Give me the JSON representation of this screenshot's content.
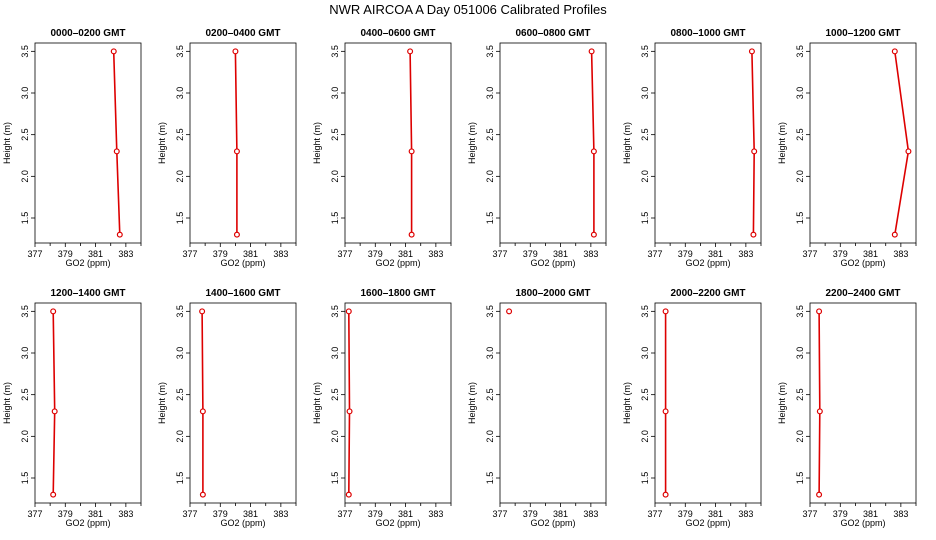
{
  "figure": {
    "title": "NWR AIRCOA A  Day 051006  Calibrated Profiles",
    "colors": {
      "series": "#dd0000",
      "axes": "#000000"
    }
  },
  "chart_data": [
    {
      "type": "line",
      "title": "0000–0200 GMT",
      "xlabel": "GO2 (ppm)",
      "ylabel": "Height (m)",
      "xlim": [
        377,
        384
      ],
      "ylim": [
        1.2,
        3.6
      ],
      "xticks": [
        377,
        379,
        381,
        383
      ],
      "yticks": [
        1.5,
        2.0,
        2.5,
        3.0,
        3.5
      ],
      "series": [
        {
          "points": [
            {
              "x": 382.6,
              "y": 1.3
            },
            {
              "x": 382.4,
              "y": 2.3
            },
            {
              "x": 382.2,
              "y": 3.5
            }
          ]
        }
      ]
    },
    {
      "type": "line",
      "title": "0200–0400 GMT",
      "xlabel": "GO2 (ppm)",
      "ylabel": "Height (m)",
      "xlim": [
        377,
        384
      ],
      "ylim": [
        1.2,
        3.6
      ],
      "xticks": [
        377,
        379,
        381,
        383
      ],
      "yticks": [
        1.5,
        2.0,
        2.5,
        3.0,
        3.5
      ],
      "series": [
        {
          "points": [
            {
              "x": 380.1,
              "y": 1.3
            },
            {
              "x": 380.1,
              "y": 2.3
            },
            {
              "x": 380.0,
              "y": 3.5
            }
          ]
        }
      ]
    },
    {
      "type": "line",
      "title": "0400–0600 GMT",
      "xlabel": "GO2 (ppm)",
      "ylabel": "Height (m)",
      "xlim": [
        377,
        384
      ],
      "ylim": [
        1.2,
        3.6
      ],
      "xticks": [
        377,
        379,
        381,
        383
      ],
      "yticks": [
        1.5,
        2.0,
        2.5,
        3.0,
        3.5
      ],
      "series": [
        {
          "points": [
            {
              "x": 381.4,
              "y": 1.3
            },
            {
              "x": 381.4,
              "y": 2.3
            },
            {
              "x": 381.3,
              "y": 3.5
            }
          ]
        }
      ]
    },
    {
      "type": "line",
      "title": "0600–0800 GMT",
      "xlabel": "GO2 (ppm)",
      "ylabel": "Height (m)",
      "xlim": [
        377,
        384
      ],
      "ylim": [
        1.2,
        3.6
      ],
      "xticks": [
        377,
        379,
        381,
        383
      ],
      "yticks": [
        1.5,
        2.0,
        2.5,
        3.0,
        3.5
      ],
      "series": [
        {
          "points": [
            {
              "x": 383.2,
              "y": 1.3
            },
            {
              "x": 383.2,
              "y": 2.3
            },
            {
              "x": 383.05,
              "y": 3.5
            }
          ]
        }
      ]
    },
    {
      "type": "line",
      "title": "0800–1000 GMT",
      "xlabel": "GO2 (ppm)",
      "ylabel": "Height (m)",
      "xlim": [
        377,
        384
      ],
      "ylim": [
        1.2,
        3.6
      ],
      "xticks": [
        377,
        379,
        381,
        383
      ],
      "yticks": [
        1.5,
        2.0,
        2.5,
        3.0,
        3.5
      ],
      "series": [
        {
          "points": [
            {
              "x": 383.5,
              "y": 1.3
            },
            {
              "x": 383.55,
              "y": 2.3
            },
            {
              "x": 383.4,
              "y": 3.5
            }
          ]
        }
      ]
    },
    {
      "type": "line",
      "title": "1000–1200 GMT",
      "xlabel": "GO2 (ppm)",
      "ylabel": "Height (m)",
      "xlim": [
        377,
        384
      ],
      "ylim": [
        1.2,
        3.6
      ],
      "xticks": [
        377,
        379,
        381,
        383
      ],
      "yticks": [
        1.5,
        2.0,
        2.5,
        3.0,
        3.5
      ],
      "series": [
        {
          "points": [
            {
              "x": 382.6,
              "y": 1.3
            },
            {
              "x": 383.5,
              "y": 2.3
            },
            {
              "x": 382.6,
              "y": 3.5
            }
          ]
        }
      ]
    },
    {
      "type": "line",
      "title": "1200–1400 GMT",
      "xlabel": "GO2 (ppm)",
      "ylabel": "Height (m)",
      "xlim": [
        377,
        384
      ],
      "ylim": [
        1.2,
        3.6
      ],
      "xticks": [
        377,
        379,
        381,
        383
      ],
      "yticks": [
        1.5,
        2.0,
        2.5,
        3.0,
        3.5
      ],
      "series": [
        {
          "points": [
            {
              "x": 378.2,
              "y": 1.3
            },
            {
              "x": 378.3,
              "y": 2.3
            },
            {
              "x": 378.2,
              "y": 3.5
            }
          ]
        }
      ]
    },
    {
      "type": "line",
      "title": "1400–1600 GMT",
      "xlabel": "GO2 (ppm)",
      "ylabel": "Height (m)",
      "xlim": [
        377,
        384
      ],
      "ylim": [
        1.2,
        3.6
      ],
      "xticks": [
        377,
        379,
        381,
        383
      ],
      "yticks": [
        1.5,
        2.0,
        2.5,
        3.0,
        3.5
      ],
      "series": [
        {
          "points": [
            {
              "x": 377.85,
              "y": 1.3
            },
            {
              "x": 377.85,
              "y": 2.3
            },
            {
              "x": 377.8,
              "y": 3.5
            }
          ]
        }
      ]
    },
    {
      "type": "line",
      "title": "1600–1800 GMT",
      "xlabel": "GO2 (ppm)",
      "ylabel": "Height (m)",
      "xlim": [
        377,
        384
      ],
      "ylim": [
        1.2,
        3.6
      ],
      "xticks": [
        377,
        379,
        381,
        383
      ],
      "yticks": [
        1.5,
        2.0,
        2.5,
        3.0,
        3.5
      ],
      "series": [
        {
          "points": [
            {
              "x": 377.25,
              "y": 1.3
            },
            {
              "x": 377.3,
              "y": 2.3
            },
            {
              "x": 377.25,
              "y": 3.5
            }
          ]
        }
      ]
    },
    {
      "type": "line",
      "title": "1800–2000 GMT",
      "xlabel": "GO2 (ppm)",
      "ylabel": "Height (m)",
      "xlim": [
        377,
        384
      ],
      "ylim": [
        1.2,
        3.6
      ],
      "xticks": [
        377,
        379,
        381,
        383
      ],
      "yticks": [
        1.5,
        2.0,
        2.5,
        3.0,
        3.5
      ],
      "series": [
        {
          "points": [
            {
              "x": 377.6,
              "y": 3.5
            }
          ]
        }
      ]
    },
    {
      "type": "line",
      "title": "2000–2200 GMT",
      "xlabel": "GO2 (ppm)",
      "ylabel": "Height (m)",
      "xlim": [
        377,
        384
      ],
      "ylim": [
        1.2,
        3.6
      ],
      "xticks": [
        377,
        379,
        381,
        383
      ],
      "yticks": [
        1.5,
        2.0,
        2.5,
        3.0,
        3.5
      ],
      "series": [
        {
          "points": [
            {
              "x": 377.7,
              "y": 1.3
            },
            {
              "x": 377.7,
              "y": 2.3
            },
            {
              "x": 377.7,
              "y": 3.5
            }
          ]
        }
      ]
    },
    {
      "type": "line",
      "title": "2200–2400 GMT",
      "xlabel": "GO2 (ppm)",
      "ylabel": "Height (m)",
      "xlim": [
        377,
        384
      ],
      "ylim": [
        1.2,
        3.6
      ],
      "xticks": [
        377,
        379,
        381,
        383
      ],
      "yticks": [
        1.5,
        2.0,
        2.5,
        3.0,
        3.5
      ],
      "series": [
        {
          "points": [
            {
              "x": 377.6,
              "y": 1.3
            },
            {
              "x": 377.65,
              "y": 2.3
            },
            {
              "x": 377.6,
              "y": 3.5
            }
          ]
        }
      ]
    }
  ]
}
